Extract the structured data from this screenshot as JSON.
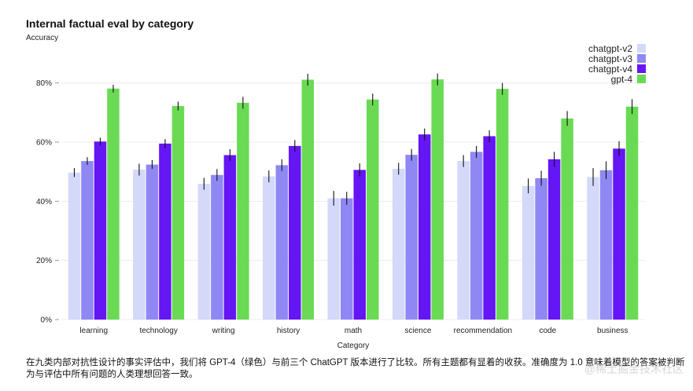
{
  "caption": "在九类内部对抗性设计的事实评估中，我们将 GPT-4（绿色）与前三个 ChatGPT 版本进行了比较。所有主题都有显着的收获。准确度为 1.0 意味着模型的答案被判断为与评估中所有问题的人类理想回答一致。",
  "watermark": "@稀土掘金技术社区",
  "chart_data": {
    "type": "bar",
    "title": "Internal factual eval by category",
    "ylabel": "Accuracy",
    "xlabel": "Category",
    "ylim": [
      0,
      0.9
    ],
    "yticks": [
      0,
      0.2,
      0.4,
      0.6,
      0.8
    ],
    "ytick_labels": [
      "0%",
      "20%",
      "40%",
      "60%",
      "80%"
    ],
    "legend_position": "top-right",
    "categories": [
      "learning",
      "technology",
      "writing",
      "history",
      "math",
      "science",
      "recommendation",
      "code",
      "business"
    ],
    "series": [
      {
        "name": "chatgpt-v2",
        "color": "#d4d9fa",
        "values": [
          0.497,
          0.507,
          0.459,
          0.484,
          0.41,
          0.51,
          0.536,
          0.452,
          0.482
        ],
        "errors": [
          0.015,
          0.02,
          0.02,
          0.02,
          0.025,
          0.02,
          0.02,
          0.025,
          0.03
        ]
      },
      {
        "name": "chatgpt-v3",
        "color": "#8f88f4",
        "values": [
          0.536,
          0.524,
          0.489,
          0.522,
          0.41,
          0.557,
          0.567,
          0.478,
          0.505
        ],
        "errors": [
          0.013,
          0.015,
          0.02,
          0.02,
          0.022,
          0.02,
          0.02,
          0.025,
          0.03
        ]
      },
      {
        "name": "chatgpt-v4",
        "color": "#6416f5",
        "values": [
          0.602,
          0.595,
          0.556,
          0.587,
          0.506,
          0.626,
          0.62,
          0.542,
          0.578
        ],
        "errors": [
          0.013,
          0.015,
          0.02,
          0.02,
          0.022,
          0.02,
          0.02,
          0.025,
          0.025
        ]
      },
      {
        "name": "gpt-4",
        "color": "#6ada55",
        "values": [
          0.781,
          0.722,
          0.733,
          0.811,
          0.744,
          0.812,
          0.78,
          0.68,
          0.72
        ],
        "errors": [
          0.013,
          0.015,
          0.02,
          0.02,
          0.02,
          0.02,
          0.02,
          0.025,
          0.025
        ]
      }
    ]
  }
}
